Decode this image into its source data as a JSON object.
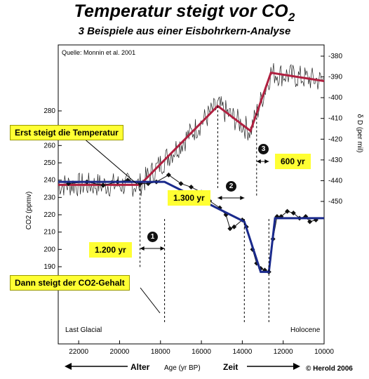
{
  "title_main": "Temperatur steigt vor CO",
  "title_sub": "2",
  "subtitle": "3 Beispiele aus einer Eisbohrkern-Analyse",
  "source": "Quelle: Monnin et al. 2001",
  "callouts": {
    "temperature_first": "Erst steigt die Temperatur",
    "co2_after": "Dann steigt der CO2-Gehalt"
  },
  "lags": [
    {
      "number": "1",
      "label": "1.200 yr"
    },
    {
      "number": "2",
      "label": "1.300 yr"
    },
    {
      "number": "3",
      "label": "600 yr"
    }
  ],
  "period_labels": {
    "left": "Last Glacial",
    "right": "Holocene"
  },
  "bottom_labels": {
    "older": "Alter",
    "axis": "Age (yr BP)",
    "newer": "Zeit"
  },
  "copyright": "© Herold 2006",
  "colors": {
    "temperature": "#b02040",
    "co2": "#1a2a8c",
    "callout": "#ffff33"
  },
  "chart_data": {
    "type": "line",
    "x_axis": {
      "label": "Age (yr BP)",
      "reversed": true,
      "lim": [
        23000,
        10000
      ],
      "ticks": [
        22000,
        20000,
        18000,
        16000,
        14000,
        12000,
        10000
      ]
    },
    "y_left": {
      "label": "CO2 (ppmv)",
      "lim": [
        180,
        290
      ],
      "ticks": [
        190,
        200,
        210,
        220,
        230,
        240,
        250,
        260,
        270,
        280
      ]
    },
    "y_right": {
      "label": "δ D (per mil)",
      "lim": [
        -450,
        -375
      ],
      "ticks": [
        -380,
        -390,
        -400,
        -410,
        -420,
        -430,
        -440,
        -450
      ]
    },
    "temperature_trend": {
      "x": [
        23000,
        19000,
        15200,
        13600,
        12600,
        10000
      ],
      "y": [
        -442,
        -442,
        -404,
        -416,
        -388,
        -392
      ]
    },
    "co2_trend": {
      "x": [
        23000,
        17800,
        13900,
        13100,
        12700,
        12400,
        10000
      ],
      "y": [
        239,
        239,
        216,
        187,
        187,
        218,
        218
      ]
    },
    "co2_samples": {
      "x": [
        22500,
        21600,
        20800,
        20100,
        19600,
        19000,
        18600,
        18200,
        17600,
        17000,
        16500,
        16000,
        15600,
        15100,
        14800,
        14600,
        14400,
        14000,
        13800,
        13500,
        13300,
        13100,
        12900,
        12700,
        12500,
        12300,
        12100,
        11800,
        11500,
        11200,
        10900,
        10700,
        10400
      ],
      "y": [
        238,
        239,
        237,
        239,
        240,
        238,
        238,
        239,
        243,
        238,
        236,
        233,
        228,
        224,
        220,
        212,
        213,
        217,
        213,
        200,
        192,
        189,
        188,
        187,
        206,
        219,
        219,
        222,
        221,
        218,
        219,
        216,
        217
      ]
    },
    "vertical_markers": [
      {
        "x": 19000,
        "axis": "temperature"
      },
      {
        "x": 17800,
        "axis": "co2"
      },
      {
        "x": 15200,
        "axis": "temperature"
      },
      {
        "x": 13900,
        "axis": "co2"
      },
      {
        "x": 13300,
        "axis": "temperature"
      },
      {
        "x": 12700,
        "axis": "co2"
      }
    ]
  }
}
